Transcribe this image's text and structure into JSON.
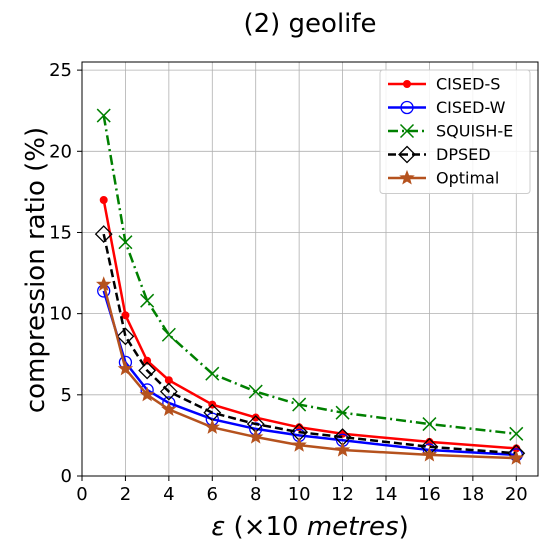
{
  "chart_data": {
    "type": "line",
    "title": "(2) geolife",
    "xlabel_symbol": "ε",
    "xlabel_prefix": " (×10 ",
    "xlabel_unit": "metres",
    "xlabel_suffix": ")",
    "ylabel": "compression ratio (%)",
    "xlim": [
      0,
      21
    ],
    "ylim": [
      0,
      25.5
    ],
    "xticks": [
      0,
      2,
      4,
      6,
      8,
      10,
      12,
      14,
      16,
      18,
      20
    ],
    "yticks": [
      0,
      5,
      10,
      15,
      20,
      25
    ],
    "grid": true,
    "legend_position": "top-right",
    "x": [
      1,
      2,
      3,
      4,
      6,
      8,
      10,
      12,
      16,
      20
    ],
    "series": [
      {
        "name": "CISED-S",
        "color": "#ff0000",
        "marker": "dot",
        "dash": "solid",
        "values": [
          17.0,
          9.9,
          7.1,
          5.9,
          4.4,
          3.6,
          3.0,
          2.6,
          2.1,
          1.7
        ]
      },
      {
        "name": "CISED-W",
        "color": "#0000ff",
        "marker": "circle",
        "dash": "solid",
        "values": [
          11.4,
          7.0,
          5.3,
          4.5,
          3.5,
          2.9,
          2.5,
          2.2,
          1.6,
          1.3
        ]
      },
      {
        "name": "SQUISH-E",
        "color": "#008000",
        "marker": "x",
        "dash": "dashdot",
        "values": [
          22.2,
          14.4,
          10.8,
          8.7,
          6.3,
          5.2,
          4.4,
          3.9,
          3.2,
          2.6
        ]
      },
      {
        "name": "DPSED",
        "color": "#000000",
        "marker": "diamond",
        "dash": "dashed",
        "values": [
          14.9,
          8.6,
          6.5,
          5.2,
          3.9,
          3.2,
          2.7,
          2.4,
          1.8,
          1.4
        ]
      },
      {
        "name": "Optimal",
        "color": "#b5521e",
        "marker": "star",
        "dash": "solid",
        "values": [
          11.8,
          6.6,
          5.0,
          4.1,
          3.0,
          2.4,
          1.9,
          1.6,
          1.3,
          1.1
        ]
      }
    ]
  }
}
